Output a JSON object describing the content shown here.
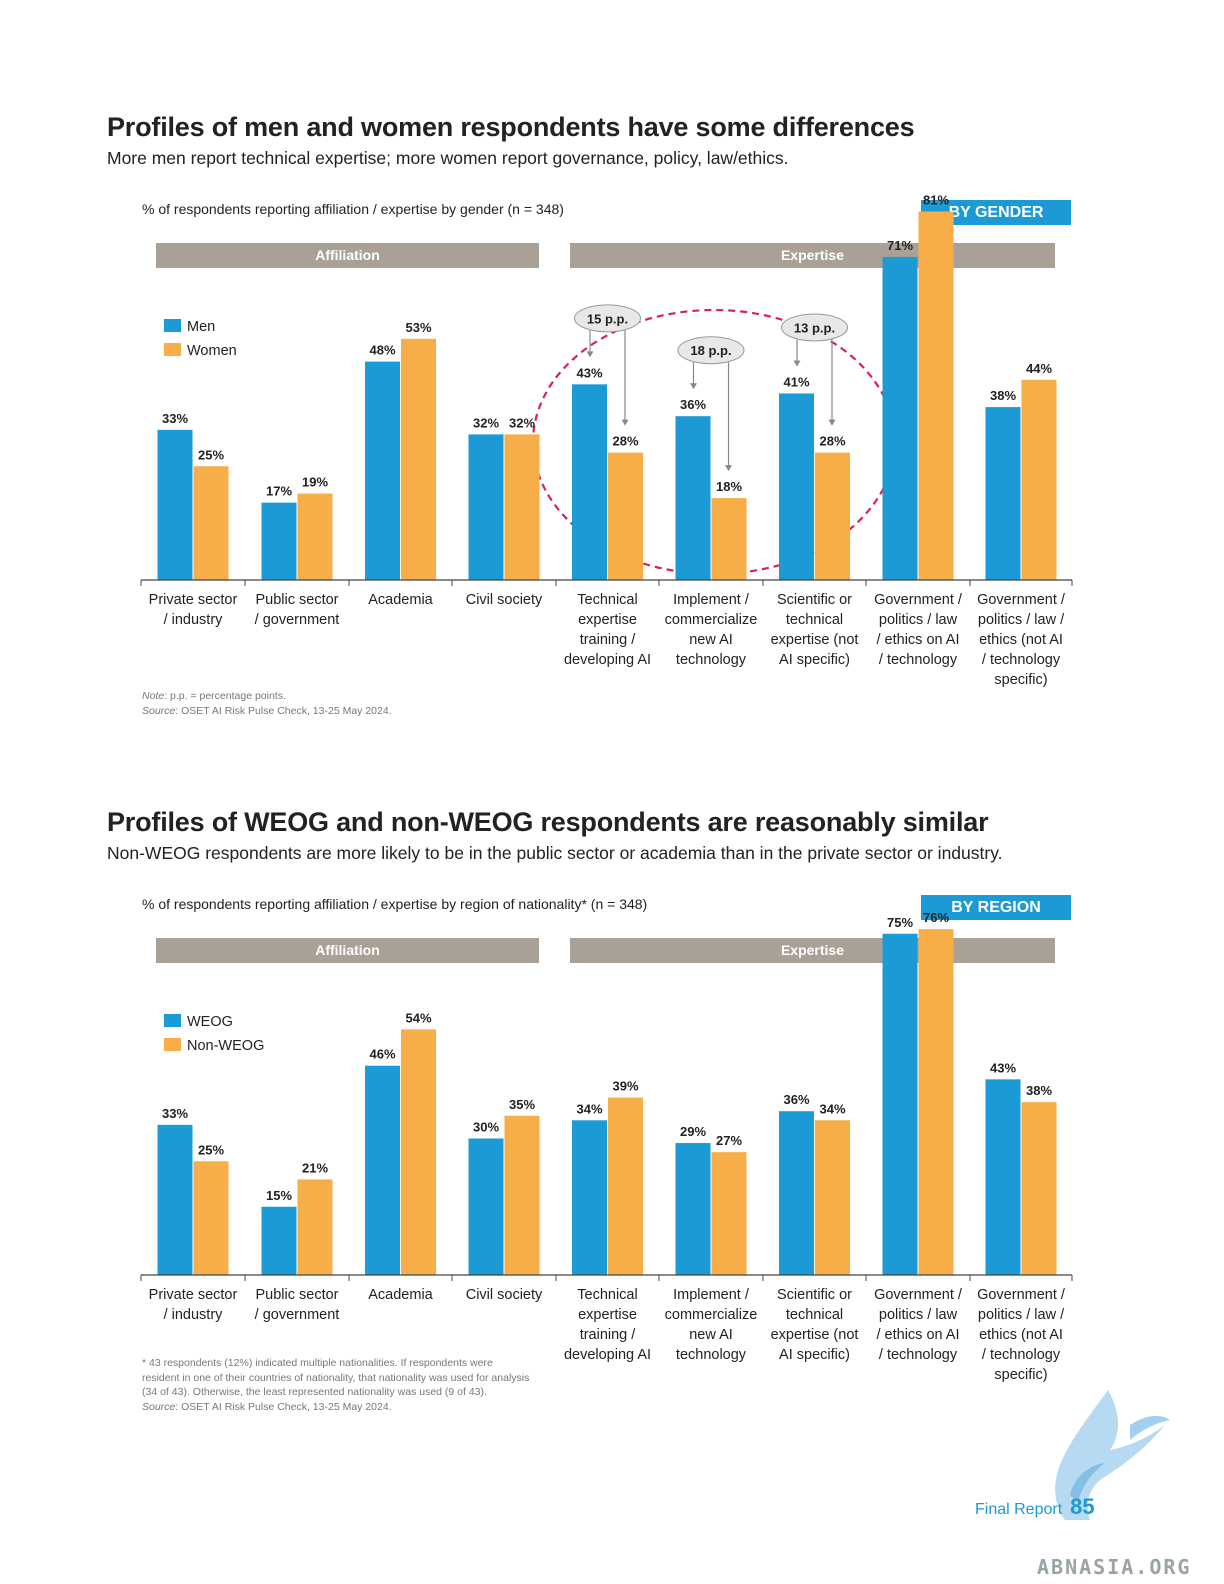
{
  "page": {
    "footer_label": "Final Report",
    "page_number": "85",
    "watermark": "ABNASIA.ORG"
  },
  "sections": [
    {
      "title": "Profiles of men and women respondents have some differences",
      "subtitle": "More men report technical expertise; more women report governance, policy, law/ethics.",
      "caption": "% of respondents reporting affiliation / expertise by gender (n = 348)",
      "badge": "BY GENDER",
      "note_label": "Note",
      "note_text": ": p.p. = percentage points.",
      "source_label": "Source",
      "source_text": ": OSET AI Risk Pulse Check, 13-25 May 2024."
    },
    {
      "title": "Profiles of WEOG and non-WEOG respondents are reasonably similar",
      "subtitle": "Non-WEOG respondents are more likely to be in the public sector or academia than in the private sector or industry.",
      "caption": "% of respondents reporting affiliation / expertise by region of nationality* (n = 348)",
      "badge": "BY REGION",
      "footnote_lines": [
        "* 43 respondents (12%) indicated multiple nationalities. If respondents were",
        "resident in one of their countries of nationality, that nationality was used for analysis",
        "(34 of 43). Otherwise, the least represented nationality was used (9 of 43)."
      ],
      "source_label": "Source",
      "source_text": ": OSET AI Risk Pulse Check, 13-25 May 2024."
    }
  ],
  "chart_data": [
    {
      "type": "bar",
      "groups": [
        {
          "label": "Affiliation",
          "from": 0,
          "to": 3
        },
        {
          "label": "Expertise",
          "from": 4,
          "to": 8
        }
      ],
      "categories": [
        [
          "Private sector",
          "/ industry"
        ],
        [
          "Public sector",
          "/ government"
        ],
        [
          "Academia"
        ],
        [
          "Civil society"
        ],
        [
          "Technical",
          "expertise",
          "training /",
          "developing AI"
        ],
        [
          "Implement /",
          "commercialize",
          "new AI",
          "technology"
        ],
        [
          "Scientific or",
          "technical",
          "expertise (not",
          "AI specific)"
        ],
        [
          "Government /",
          "politics / law",
          "/ ethics on AI",
          "/ technology"
        ],
        [
          "Government /",
          "politics / law /",
          "ethics (not AI",
          "/ technology",
          "specific)"
        ]
      ],
      "series": [
        {
          "name": "Men",
          "color": "#1c9ad6",
          "values": [
            33,
            17,
            48,
            32,
            43,
            36,
            41,
            71,
            38
          ]
        },
        {
          "name": "Women",
          "color": "#f7ad48",
          "values": [
            25,
            19,
            53,
            32,
            28,
            18,
            28,
            81,
            44
          ]
        }
      ],
      "annotations": [
        {
          "category": 4,
          "text": "15 p.p."
        },
        {
          "category": 5,
          "text": "18 p.p."
        },
        {
          "category": 6,
          "text": "13 p.p."
        }
      ],
      "highlight": {
        "from": 4,
        "to": 6,
        "color": "#d6244f"
      },
      "value_suffix": "%",
      "ylim": [
        0,
        85
      ],
      "legend_position": "top-left"
    },
    {
      "type": "bar",
      "groups": [
        {
          "label": "Affiliation",
          "from": 0,
          "to": 3
        },
        {
          "label": "Expertise",
          "from": 4,
          "to": 8
        }
      ],
      "categories": [
        [
          "Private sector",
          "/ industry"
        ],
        [
          "Public sector",
          "/ government"
        ],
        [
          "Academia"
        ],
        [
          "Civil society"
        ],
        [
          "Technical",
          "expertise",
          "training /",
          "developing AI"
        ],
        [
          "Implement /",
          "commercialize",
          "new AI",
          "technology"
        ],
        [
          "Scientific or",
          "technical",
          "expertise (not",
          "AI specific)"
        ],
        [
          "Government /",
          "politics / law",
          "/ ethics on AI",
          "/ technology"
        ],
        [
          "Government /",
          "politics / law /",
          "ethics (not AI",
          "/ technology",
          "specific)"
        ]
      ],
      "series": [
        {
          "name": "WEOG",
          "color": "#1c9ad6",
          "values": [
            33,
            15,
            46,
            30,
            34,
            29,
            36,
            75,
            43
          ]
        },
        {
          "name": "Non-WEOG",
          "color": "#f7ad48",
          "values": [
            25,
            21,
            54,
            35,
            39,
            27,
            34,
            76,
            38
          ]
        }
      ],
      "value_suffix": "%",
      "ylim": [
        0,
        85
      ],
      "legend_position": "top-left"
    }
  ]
}
